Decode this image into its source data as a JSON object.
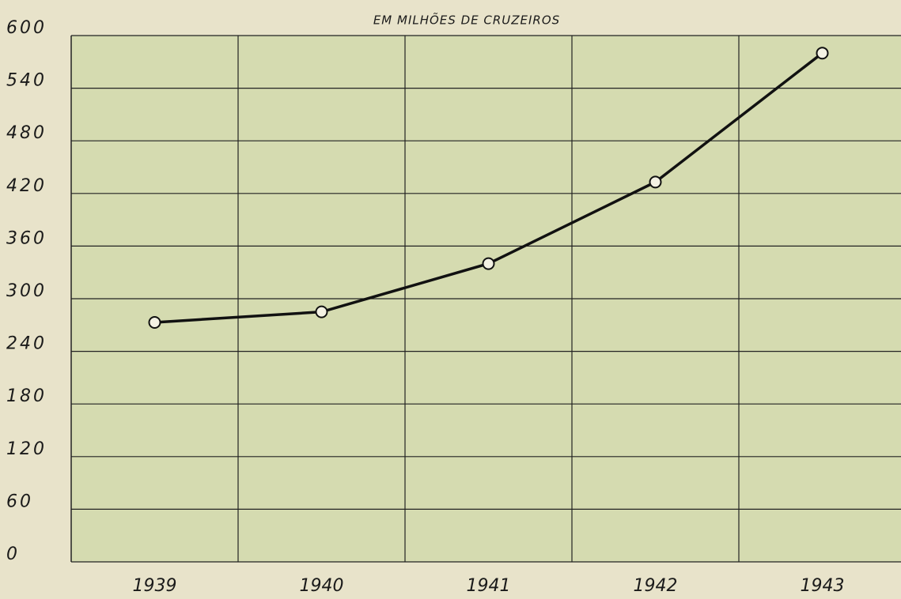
{
  "chart_data": {
    "type": "line",
    "title": "EM MILHÕES DE CRUZEIROS",
    "categories": [
      "1939",
      "1940",
      "1941",
      "1942",
      "1943"
    ],
    "series": [
      {
        "name": "Cruzeiros",
        "color": "#111111",
        "values": [
          273,
          285,
          340,
          433,
          580
        ]
      }
    ],
    "ylim": [
      0,
      600
    ],
    "yticks": [
      0,
      60,
      120,
      180,
      240,
      300,
      360,
      420,
      480,
      540,
      600
    ],
    "grid": true
  }
}
